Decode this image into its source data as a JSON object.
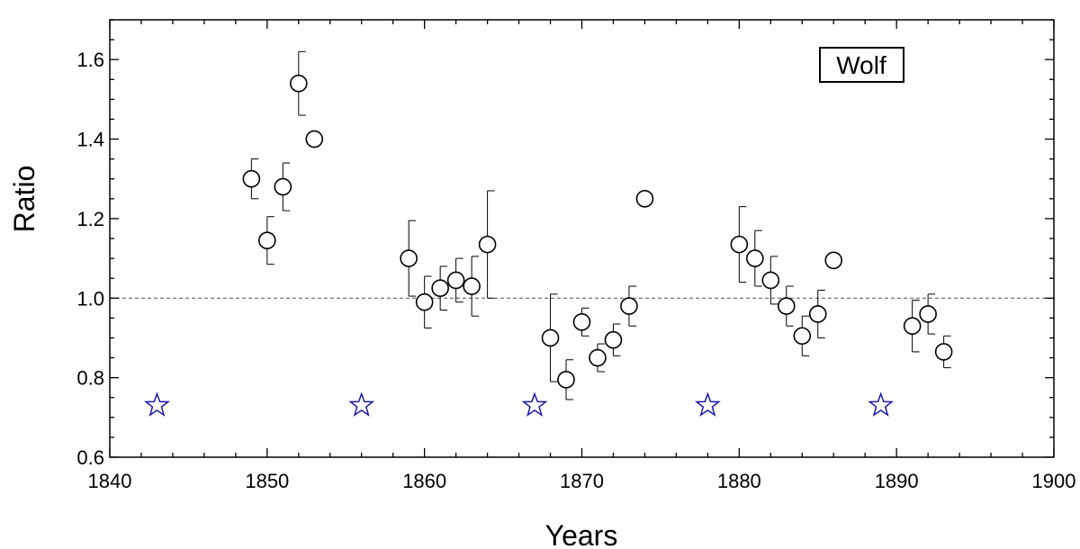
{
  "chart_data": {
    "type": "scatter",
    "xlabel": "Years",
    "ylabel": "Ratio",
    "xlim": [
      1840,
      1900
    ],
    "ylim": [
      0.6,
      1.7
    ],
    "x_ticks": [
      1840,
      1850,
      1860,
      1870,
      1880,
      1890,
      1900
    ],
    "x_tick_labels": [
      "1840",
      "1850",
      "1860",
      "1870",
      "1880",
      "1890",
      "1900"
    ],
    "y_ticks": [
      0.6,
      0.8,
      1.0,
      1.2,
      1.4,
      1.6
    ],
    "y_tick_labels": [
      "0.6",
      "0.8",
      "1.0",
      "1.2",
      "1.4",
      "1.6"
    ],
    "legend_label": "Wolf",
    "legend_placement": "top-right",
    "reference_line": {
      "y": 1.0,
      "style": "dashed"
    },
    "series": [
      {
        "marker": "open-circle",
        "points": [
          {
            "x": 1849,
            "y": 1.3,
            "err": 0.05
          },
          {
            "x": 1850,
            "y": 1.145,
            "err": 0.06
          },
          {
            "x": 1851,
            "y": 1.28,
            "err": 0.06
          },
          {
            "x": 1852,
            "y": 1.54,
            "err": 0.08
          },
          {
            "x": 1853,
            "y": 1.4,
            "err": null
          },
          {
            "x": 1859,
            "y": 1.1,
            "err": 0.095
          },
          {
            "x": 1860,
            "y": 0.99,
            "err": 0.065
          },
          {
            "x": 1861,
            "y": 1.025,
            "err": 0.055
          },
          {
            "x": 1862,
            "y": 1.045,
            "err": 0.055
          },
          {
            "x": 1863,
            "y": 1.03,
            "err": 0.075
          },
          {
            "x": 1864,
            "y": 1.135,
            "err": 0.135
          },
          {
            "x": 1868,
            "y": 0.9,
            "err": 0.11
          },
          {
            "x": 1869,
            "y": 0.795,
            "err": 0.05
          },
          {
            "x": 1870,
            "y": 0.94,
            "err": 0.035
          },
          {
            "x": 1871,
            "y": 0.85,
            "err": 0.035
          },
          {
            "x": 1872,
            "y": 0.895,
            "err": 0.04
          },
          {
            "x": 1873,
            "y": 0.98,
            "err": 0.05
          },
          {
            "x": 1874,
            "y": 1.25,
            "err": null
          },
          {
            "x": 1880,
            "y": 1.135,
            "err": 0.095
          },
          {
            "x": 1881,
            "y": 1.1,
            "err": 0.07
          },
          {
            "x": 1882,
            "y": 1.045,
            "err": 0.06
          },
          {
            "x": 1883,
            "y": 0.98,
            "err": 0.05
          },
          {
            "x": 1884,
            "y": 0.905,
            "err": 0.05
          },
          {
            "x": 1885,
            "y": 0.96,
            "err": 0.06
          },
          {
            "x": 1886,
            "y": 1.095,
            "err": null
          },
          {
            "x": 1891,
            "y": 0.93,
            "err": 0.065
          },
          {
            "x": 1892,
            "y": 0.96,
            "err": 0.05
          },
          {
            "x": 1893,
            "y": 0.865,
            "err": 0.04
          }
        ]
      },
      {
        "marker": "open-star",
        "color": "#1a1aa8",
        "points": [
          {
            "x": 1843,
            "y": 0.73
          },
          {
            "x": 1856,
            "y": 0.73
          },
          {
            "x": 1867,
            "y": 0.73
          },
          {
            "x": 1878,
            "y": 0.73
          },
          {
            "x": 1889,
            "y": 0.73
          }
        ]
      }
    ]
  }
}
